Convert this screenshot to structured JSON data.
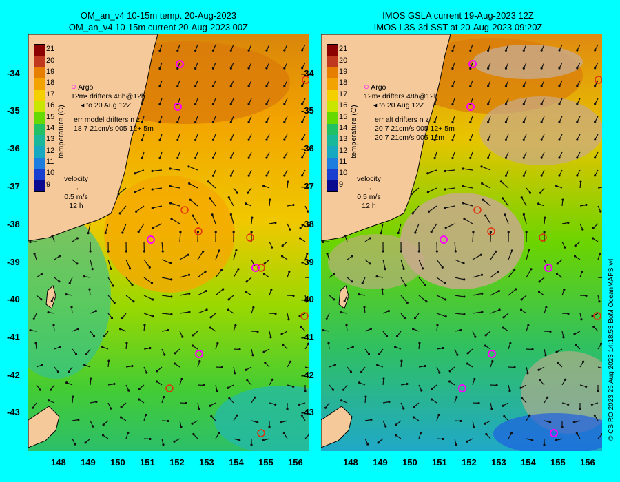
{
  "left_panel": {
    "title_line1": "OM_an_v4  10-15m temp. 20-Aug-2023",
    "title_line2": "OM_an_v4  10-15m current 20-Aug-2023 00Z",
    "legend": {
      "argo": "Argo",
      "drifters_l1": "drifters 48h@12h",
      "drifters_l2": "to 20 Aug 12Z",
      "drifters_prefix": "12m",
      "err_title": "err model drifters n  z",
      "err_row1": "18 7 21cm/s 005 12+ 5m",
      "velocity_label": "velocity",
      "velocity_scale": "0.5 m/s",
      "velocity_time": "12 h"
    }
  },
  "right_panel": {
    "title_line1": "IMOS GSLA current 19-Aug-2023 12Z",
    "title_line2": "IMOS L3S-3d SST at 20-Aug-2023 09:20Z",
    "legend": {
      "argo": "Argo",
      "drifters_l1": "drifters 48h@12h",
      "drifters_l2": "to 20 Aug 12Z",
      "drifters_prefix": "12m",
      "err_title": "err alt drifters n  z",
      "err_row1": "20 7 21cm/s 005 12+ 5m",
      "err_row2": "20 7 21cm/s 005 12m",
      "velocity_label": "velocity",
      "velocity_scale": "0.5 m/s",
      "velocity_time": "12 h"
    }
  },
  "colorbar": {
    "title": "temperature (C)",
    "ticks": [
      "21",
      "20",
      "19",
      "18",
      "17",
      "16",
      "15",
      "14",
      "13",
      "12",
      "11",
      "10",
      "9"
    ],
    "colors": [
      "#8b0000",
      "#c0391f",
      "#e67e00",
      "#f2a300",
      "#f5d000",
      "#c8e600",
      "#66d900",
      "#22c064",
      "#1ab89a",
      "#18a8c0",
      "#1e7ee0",
      "#1a3fd0",
      "#0a0a90"
    ]
  },
  "axes": {
    "lat_labels": [
      "-34",
      "-35",
      "-36",
      "-37",
      "-38",
      "-39",
      "-40",
      "-41",
      "-42",
      "-43"
    ],
    "lon_labels": [
      "148",
      "149",
      "150",
      "151",
      "152",
      "153",
      "154",
      "155",
      "156"
    ]
  },
  "markers_note": "",
  "credit": "© CSIRO 2023   25 Aug 2023 14:18:53 BoM OceanMAPS v4",
  "colors": {
    "background": "#00ffff",
    "land": "#f6c99a",
    "nodata": "#c8aa8c",
    "argo_marker": "#ff00ff",
    "drifter_marker": "#e03010"
  }
}
